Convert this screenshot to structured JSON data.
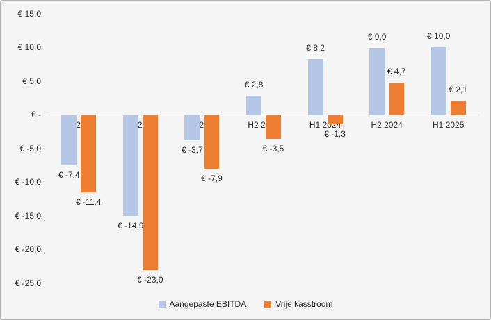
{
  "chart_data": {
    "type": "bar",
    "title": "",
    "xlabel": "",
    "ylabel": "",
    "categories": [
      "H1 2022",
      "H2 2022",
      "H1 2023",
      "H2 2023",
      "H1 2024",
      "H2 2024",
      "H1 2025"
    ],
    "series": [
      {
        "name": "Aangepaste EBITDA",
        "color": "#b4c7e7",
        "values": [
          -7.4,
          -14.9,
          -3.7,
          2.8,
          8.2,
          9.9,
          10.0
        ]
      },
      {
        "name": "Vrije kasstroom",
        "color": "#ed7d31",
        "values": [
          -11.4,
          -23.0,
          -7.9,
          -3.5,
          -1.3,
          4.7,
          2.1
        ]
      }
    ],
    "data_labels": [
      [
        "€ -7,4",
        "€ -14,9",
        "€ -3,7",
        "€ 2,8",
        "€ 8,2",
        "€ 9,9",
        "€ 10,0"
      ],
      [
        "€ -11,4",
        "€ -23,0",
        "€ -7,9",
        "€ -3,5",
        "€ -1,3",
        "€ 4,7",
        "€ 2,1"
      ]
    ],
    "y_axis": {
      "min": -25,
      "max": 15,
      "ticks": [
        15,
        10,
        5,
        0,
        -5,
        -10,
        -15,
        -20,
        -25
      ],
      "tick_labels": [
        "€ 15,0",
        "€ 10,0",
        "€ 5,0",
        "€ -",
        "€ -5,0",
        "€ -10,0",
        "€ -15,0",
        "€ -20,0",
        "€ -25,0"
      ]
    },
    "legend": {
      "position": "bottom",
      "entries": [
        "Aangepaste EBITDA",
        "Vrije kasstroom"
      ]
    },
    "grid": false
  },
  "colors": {
    "background": "#f5f5f5",
    "border": "#b3b3b3",
    "axis_line": "#d9d9d9",
    "text": "#262626"
  }
}
